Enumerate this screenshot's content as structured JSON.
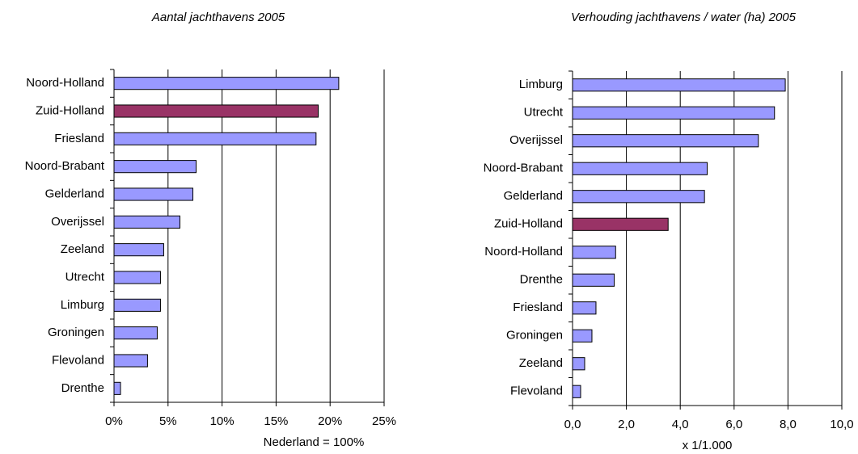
{
  "chart_data": [
    {
      "type": "bar",
      "orientation": "horizontal",
      "title": "Aantal jachthavens 2005",
      "xlabel": "Nederland = 100%",
      "categories": [
        "Noord-Holland",
        "Zuid-Holland",
        "Friesland",
        "Noord-Brabant",
        "Gelderland",
        "Overijssel",
        "Zeeland",
        "Utrecht",
        "Limburg",
        "Groningen",
        "Flevoland",
        "Drenthe"
      ],
      "values": [
        20.8,
        18.9,
        18.7,
        7.6,
        7.3,
        6.1,
        4.6,
        4.3,
        4.3,
        4.0,
        3.1,
        0.6
      ],
      "colors": [
        "#9999ff",
        "#993366",
        "#9999ff",
        "#9999ff",
        "#9999ff",
        "#9999ff",
        "#9999ff",
        "#9999ff",
        "#9999ff",
        "#9999ff",
        "#9999ff",
        "#9999ff"
      ],
      "xlim": [
        0,
        25
      ],
      "xticks": [
        {
          "value": 0,
          "label": "0%"
        },
        {
          "value": 5,
          "label": "5%"
        },
        {
          "value": 10,
          "label": "10%"
        },
        {
          "value": 15,
          "label": "15%"
        },
        {
          "value": 20,
          "label": "20%"
        },
        {
          "value": 25,
          "label": "25%"
        }
      ],
      "grid": true
    },
    {
      "type": "bar",
      "orientation": "horizontal",
      "title": "Verhouding jachthavens / water (ha) 2005",
      "xlabel": "x 1/1.000",
      "categories": [
        "Limburg",
        "Utrecht",
        "Overijssel",
        "Noord-Brabant",
        "Gelderland",
        "Zuid-Holland",
        "Noord-Holland",
        "Drenthe",
        "Friesland",
        "Groningen",
        "Zeeland",
        "Flevoland"
      ],
      "values": [
        7.9,
        7.5,
        6.9,
        5.0,
        4.9,
        3.55,
        1.6,
        1.55,
        0.87,
        0.72,
        0.45,
        0.3
      ],
      "colors": [
        "#9999ff",
        "#9999ff",
        "#9999ff",
        "#9999ff",
        "#9999ff",
        "#993366",
        "#9999ff",
        "#9999ff",
        "#9999ff",
        "#9999ff",
        "#9999ff",
        "#9999ff"
      ],
      "xlim": [
        0,
        10
      ],
      "xticks": [
        {
          "value": 0,
          "label": "0,0"
        },
        {
          "value": 2,
          "label": "2,0"
        },
        {
          "value": 4,
          "label": "4,0"
        },
        {
          "value": 6,
          "label": "6,0"
        },
        {
          "value": 8,
          "label": "8,0"
        },
        {
          "value": 10,
          "label": "10,0"
        }
      ],
      "grid": true
    }
  ]
}
